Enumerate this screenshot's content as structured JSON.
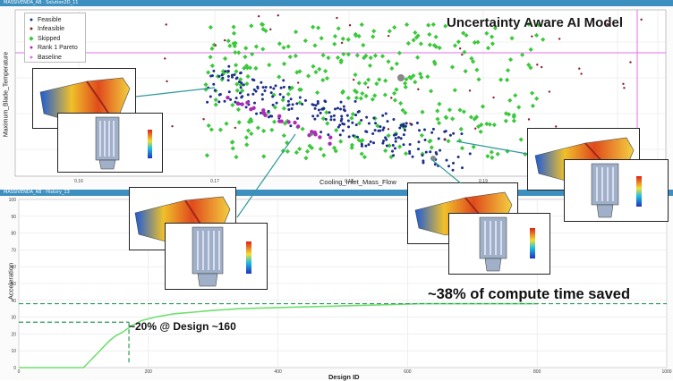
{
  "top_panel": {
    "bar_title": "MASSIVENDA_AB · Solution2D_11",
    "title": "Uncertainty Aware AI Model",
    "xlabel": "Cooling_Inlet_Mass_Flow",
    "ylabel": "Maximum_Blade_Temperature",
    "xticks": [
      "0.16",
      "0.17",
      "0.18",
      "0.19",
      "0.20",
      "0.21"
    ],
    "legend": [
      {
        "label": "Feasible",
        "color": "#1c2e8a",
        "icon": "dot-icon"
      },
      {
        "label": "Infeasible",
        "color": "#8c1c2c",
        "icon": "dot-icon"
      },
      {
        "label": "Skipped",
        "color": "#3cc83c",
        "icon": "diamond-icon"
      },
      {
        "label": "Rank 1 Pareto",
        "color": "#b02ab8",
        "icon": "dot-icon"
      },
      {
        "label": "Baseline",
        "color": "#e070e8",
        "icon": "dot-icon"
      }
    ]
  },
  "bottom_panel": {
    "bar_title": "MASSIVENDA_AB · History_13",
    "xlabel": "Design ID",
    "ylabel": "Acceleration",
    "yticks": [
      "0",
      "10",
      "20",
      "30",
      "40",
      "50",
      "60",
      "70",
      "80",
      "90",
      "100"
    ],
    "xticks": [
      "0",
      "200",
      "400",
      "600",
      "800",
      "1000"
    ],
    "annotation_saved": "~38% of compute time saved",
    "annotation_design": "~20% @ Design ~160"
  },
  "colors": {
    "accent_bar": "#3d8fbf",
    "feasible": "#1c2e8a",
    "skipped": "#3cc83c",
    "pareto": "#b02ab8",
    "baseline_line": "#e070e8",
    "history_line": "#6ee06e",
    "dashed_ref": "#2a9a5a"
  },
  "chart_data": [
    {
      "type": "scatter",
      "title": "Uncertainty Aware AI Model",
      "xlabel": "Cooling_Inlet_Mass_Flow",
      "ylabel": "Maximum_Blade_Temperature",
      "xlim": [
        0.155,
        0.212
      ],
      "series": [
        {
          "name": "Feasible",
          "marker": "dot"
        },
        {
          "name": "Infeasible",
          "marker": "dot"
        },
        {
          "name": "Skipped",
          "marker": "diamond"
        },
        {
          "name": "Rank 1 Pareto",
          "marker": "dot"
        },
        {
          "name": "Baseline",
          "marker": "dot"
        }
      ],
      "legend_position": "top-left",
      "grid": true
    },
    {
      "type": "line",
      "xlabel": "Design ID",
      "ylabel": "Acceleration",
      "xlim": [
        0,
        1000
      ],
      "ylim": [
        0,
        100
      ],
      "series": [
        {
          "x": [
            0,
            100,
            110,
            120,
            130,
            140,
            150,
            160,
            175,
            190,
            210,
            240,
            270,
            300,
            340,
            380,
            430,
            480,
            530,
            580,
            620,
            660,
            700,
            800
          ],
          "y": [
            0,
            0,
            4,
            8,
            12,
            16,
            19,
            21,
            25,
            28,
            30,
            32,
            33,
            34,
            35,
            35.5,
            36,
            36.5,
            37,
            37.5,
            38,
            38,
            38,
            38
          ]
        }
      ],
      "reference_lines": [
        {
          "axis": "y",
          "value": 38
        },
        {
          "axis": "y",
          "value": 27
        },
        {
          "axis": "x",
          "value": 170
        }
      ],
      "grid": true
    }
  ]
}
